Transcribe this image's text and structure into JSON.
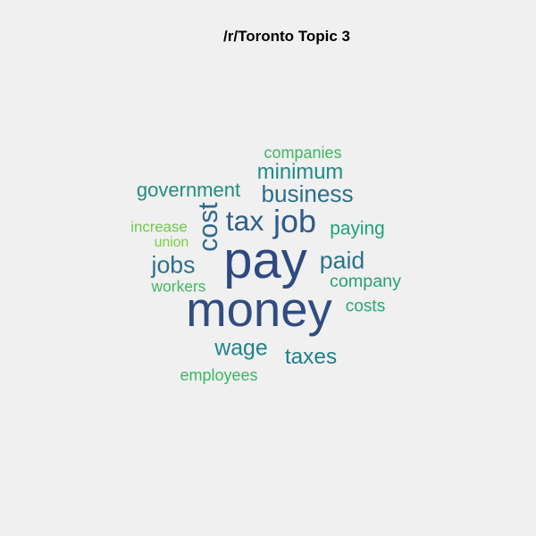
{
  "chart_data": {
    "type": "wordcloud",
    "title": "/r/Toronto Topic 3",
    "words": [
      {
        "text": "pay",
        "weight": 1.0,
        "color": "#2d4a80",
        "vertical": false
      },
      {
        "text": "money",
        "weight": 0.94,
        "color": "#2f4d82",
        "vertical": false
      },
      {
        "text": "job",
        "weight": 0.62,
        "color": "#2e5b8a",
        "vertical": false
      },
      {
        "text": "tax",
        "weight": 0.55,
        "color": "#2f5e8b",
        "vertical": false
      },
      {
        "text": "cost",
        "weight": 0.52,
        "color": "#2e6a8c",
        "vertical": true
      },
      {
        "text": "paid",
        "weight": 0.46,
        "color": "#2a738c",
        "vertical": false
      },
      {
        "text": "jobs",
        "weight": 0.46,
        "color": "#2d6e8d",
        "vertical": false
      },
      {
        "text": "business",
        "weight": 0.45,
        "color": "#2a6f8c",
        "vertical": false
      },
      {
        "text": "wage",
        "weight": 0.43,
        "color": "#20838a",
        "vertical": false
      },
      {
        "text": "taxes",
        "weight": 0.42,
        "color": "#1f7e8a",
        "vertical": false
      },
      {
        "text": "minimum",
        "weight": 0.41,
        "color": "#1f8a89",
        "vertical": false
      },
      {
        "text": "government",
        "weight": 0.38,
        "color": "#208e7f",
        "vertical": false
      },
      {
        "text": "paying",
        "weight": 0.36,
        "color": "#22a07a",
        "vertical": false
      },
      {
        "text": "company",
        "weight": 0.34,
        "color": "#26a373",
        "vertical": false
      },
      {
        "text": "costs",
        "weight": 0.33,
        "color": "#28a770",
        "vertical": false
      },
      {
        "text": "companies",
        "weight": 0.31,
        "color": "#3db863",
        "vertical": false
      },
      {
        "text": "employees",
        "weight": 0.31,
        "color": "#3cb663",
        "vertical": false
      },
      {
        "text": "workers",
        "weight": 0.3,
        "color": "#3fb85f",
        "vertical": false
      },
      {
        "text": "increase",
        "weight": 0.29,
        "color": "#6cc94b",
        "vertical": false
      },
      {
        "text": "union",
        "weight": 0.27,
        "color": "#7bcd45",
        "vertical": false
      }
    ]
  }
}
